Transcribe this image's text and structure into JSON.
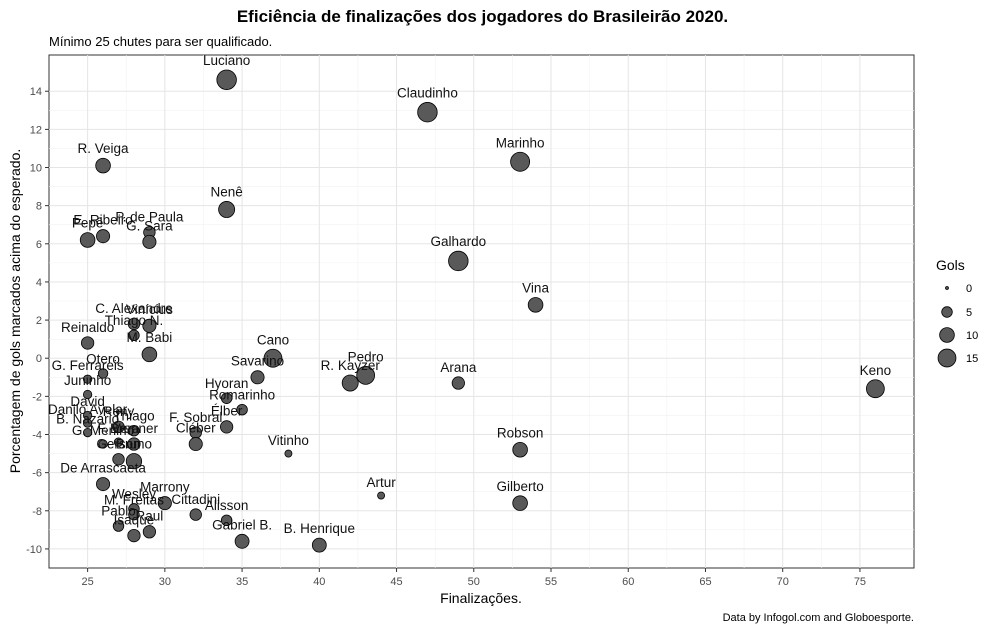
{
  "chart_data": {
    "type": "scatter",
    "title": "Eficiência de finalizações dos jogadores do Brasileirão 2020.",
    "subtitle": "Mínimo 25 chutes para ser qualificado.",
    "caption": "Data by Infogol.com and Globoesporte.",
    "xlabel": "Finalizações.",
    "ylabel": "Porcentagem de gols marcados acima do esperado.",
    "xlim": [
      22.5,
      78.5
    ],
    "ylim": [
      -11,
      15.9
    ],
    "xticks": [
      25,
      30,
      35,
      40,
      45,
      50,
      55,
      60,
      65,
      70,
      75
    ],
    "yticks": [
      -10,
      -8,
      -6,
      -4,
      -2,
      0,
      2,
      4,
      6,
      8,
      10,
      12,
      14
    ],
    "grid": true,
    "legend": {
      "title": "Gols",
      "placement": "right",
      "sizes": [
        0,
        5,
        10,
        15
      ]
    },
    "points": [
      {
        "name": "Luciano",
        "x": 34,
        "y": 14.6,
        "gols": 18
      },
      {
        "name": "Claudinho",
        "x": 47,
        "y": 12.9,
        "gols": 18
      },
      {
        "name": "Marinho",
        "x": 53,
        "y": 10.3,
        "gols": 17
      },
      {
        "name": "R. Veiga",
        "x": 26,
        "y": 10.1,
        "gols": 10
      },
      {
        "name": "Nenê",
        "x": 34,
        "y": 7.8,
        "gols": 12
      },
      {
        "name": "P. de Paula",
        "x": 29,
        "y": 6.6,
        "gols": 6
      },
      {
        "name": "E. Ribeiro",
        "x": 26,
        "y": 6.4,
        "gols": 8
      },
      {
        "name": "G. Sara",
        "x": 29,
        "y": 6.1,
        "gols": 8
      },
      {
        "name": "Pepê",
        "x": 25,
        "y": 6.2,
        "gols": 10
      },
      {
        "name": "Galhardo",
        "x": 49,
        "y": 5.1,
        "gols": 18
      },
      {
        "name": "Vina",
        "x": 54,
        "y": 2.8,
        "gols": 10
      },
      {
        "name": "C. Alexandre",
        "x": 28,
        "y": 1.8,
        "gols": 6
      },
      {
        "name": "Vinícius",
        "x": 29,
        "y": 1.7,
        "gols": 8
      },
      {
        "name": "Thiago N.",
        "x": 28,
        "y": 1.2,
        "gols": 5
      },
      {
        "name": "Reinaldo",
        "x": 25,
        "y": 0.8,
        "gols": 7
      },
      {
        "name": "M. Babi",
        "x": 29,
        "y": 0.2,
        "gols": 10
      },
      {
        "name": "Cano",
        "x": 37,
        "y": 0.0,
        "gols": 15
      },
      {
        "name": "Otero",
        "x": 26,
        "y": -0.8,
        "gols": 4
      },
      {
        "name": "Savarino",
        "x": 36,
        "y": -1.0,
        "gols": 8
      },
      {
        "name": "G. Ferrareis",
        "x": 25,
        "y": -1.1,
        "gols": 3
      },
      {
        "name": "Pedro",
        "x": 43,
        "y": -0.9,
        "gols": 15
      },
      {
        "name": "R. Kayzer",
        "x": 42,
        "y": -1.3,
        "gols": 12
      },
      {
        "name": "Arana",
        "x": 49,
        "y": -1.3,
        "gols": 7
      },
      {
        "name": "Keno",
        "x": 76,
        "y": -1.6,
        "gols": 15
      },
      {
        "name": "Juninho",
        "x": 25,
        "y": -1.9,
        "gols": 3
      },
      {
        "name": "Hyoran",
        "x": 34,
        "y": -2.1,
        "gols": 5
      },
      {
        "name": "Romarinho",
        "x": 35,
        "y": -2.7,
        "gols": 5
      },
      {
        "name": "David",
        "x": 25,
        "y": -3.0,
        "gols": 3
      },
      {
        "name": "Élber",
        "x": 34,
        "y": -3.6,
        "gols": 7
      },
      {
        "name": "Danilo Avelar",
        "x": 25,
        "y": -3.4,
        "gols": 3
      },
      {
        "name": "Rony",
        "x": 27,
        "y": -3.6,
        "gols": 6
      },
      {
        "name": "F. Sobral",
        "x": 32,
        "y": -3.9,
        "gols": 6
      },
      {
        "name": "Cléber",
        "x": 32,
        "y": -4.5,
        "gols": 8
      },
      {
        "name": "B. Nazário",
        "x": 25,
        "y": -3.9,
        "gols": 3
      },
      {
        "name": "Thiago",
        "x": 28,
        "y": -3.8,
        "gols": 5
      },
      {
        "name": "Vitinho",
        "x": 38,
        "y": -5.0,
        "gols": 2
      },
      {
        "name": "G. Menino",
        "x": 26,
        "y": -4.5,
        "gols": 3
      },
      {
        "name": "F. Vera",
        "x": 27,
        "y": -4.4,
        "gols": 3
      },
      {
        "name": "Brenner",
        "x": 28,
        "y": -4.5,
        "gols": 7
      },
      {
        "name": "Robson",
        "x": 53,
        "y": -4.8,
        "gols": 10
      },
      {
        "name": "Gerson",
        "x": 27,
        "y": -5.3,
        "gols": 6
      },
      {
        "name": "Bruno",
        "x": 28,
        "y": -5.4,
        "gols": 11
      },
      {
        "name": "De Arrascaeta",
        "x": 26,
        "y": -6.6,
        "gols": 8
      },
      {
        "name": "Artur",
        "x": 44,
        "y": -7.2,
        "gols": 2
      },
      {
        "name": "Gilberto",
        "x": 53,
        "y": -7.6,
        "gols": 10
      },
      {
        "name": "Marrony",
        "x": 30,
        "y": -7.6,
        "gols": 8
      },
      {
        "name": "Wesley",
        "x": 28,
        "y": -7.9,
        "gols": 5
      },
      {
        "name": "M. Freitas",
        "x": 28,
        "y": -8.2,
        "gols": 5
      },
      {
        "name": "Cittadini",
        "x": 32,
        "y": -8.2,
        "gols": 6
      },
      {
        "name": "Alisson",
        "x": 34,
        "y": -8.5,
        "gols": 5
      },
      {
        "name": "Pablo",
        "x": 27,
        "y": -8.8,
        "gols": 5
      },
      {
        "name": "Raul",
        "x": 29,
        "y": -9.1,
        "gols": 7
      },
      {
        "name": "Isaque",
        "x": 28,
        "y": -9.3,
        "gols": 7
      },
      {
        "name": "Gabriel B.",
        "x": 35,
        "y": -9.6,
        "gols": 9
      },
      {
        "name": "B. Henrique",
        "x": 40,
        "y": -9.8,
        "gols": 9
      }
    ]
  }
}
